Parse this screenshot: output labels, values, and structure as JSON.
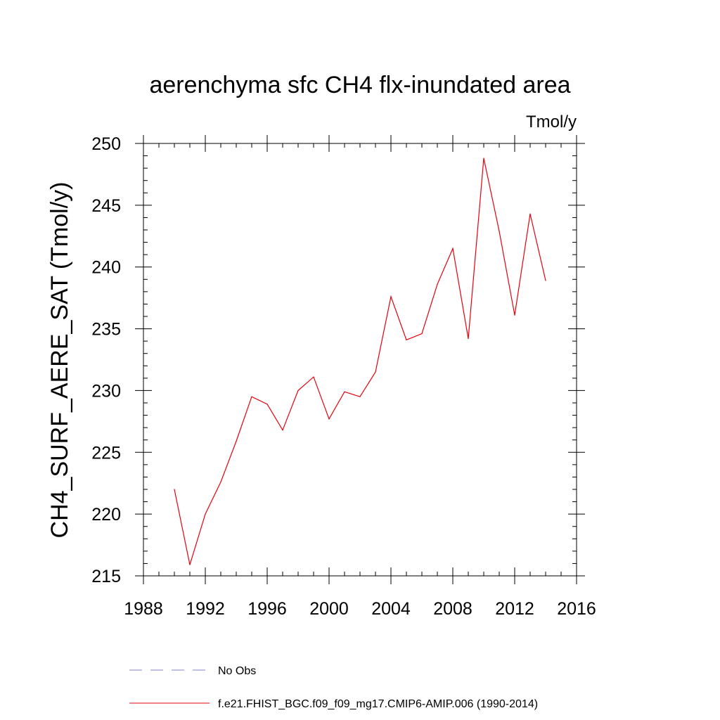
{
  "chart_data": {
    "type": "line",
    "title": "aerenchyma sfc CH4 flx-inundated area",
    "units_label": "Tmol/y",
    "ylabel": "CH4_SURF_AERE_SAT  (Tmol/y)",
    "xlabel": "",
    "xlim": [
      1988,
      2016
    ],
    "ylim": [
      215,
      250
    ],
    "x_ticks": [
      1988,
      1992,
      1996,
      2000,
      2004,
      2008,
      2012,
      2016
    ],
    "y_ticks": [
      215,
      220,
      225,
      230,
      235,
      240,
      245,
      250
    ],
    "x_minor_step": 1,
    "y_minor_step": 1,
    "series": [
      {
        "name": "f.e21.FHIST_BGC.f09_f09_mg17.CMIP6-AMIP.006 (1990-2014)",
        "color": "#e8000b",
        "dash": "solid",
        "x": [
          1990,
          1991,
          1992,
          1993,
          1994,
          1995,
          1996,
          1997,
          1998,
          1999,
          2000,
          2001,
          2002,
          2003,
          2004,
          2005,
          2006,
          2007,
          2008,
          2009,
          2010,
          2011,
          2012,
          2013,
          2014
        ],
        "values": [
          222.0,
          215.9,
          220.0,
          222.6,
          225.9,
          229.5,
          228.9,
          226.8,
          230.0,
          231.1,
          227.7,
          229.9,
          229.5,
          231.5,
          237.6,
          234.1,
          234.6,
          238.6,
          241.5,
          234.2,
          248.8,
          242.9,
          236.1,
          244.3,
          238.9
        ]
      }
    ],
    "legend": [
      {
        "label": "No Obs",
        "color": "#8080c0",
        "dash": "dashed"
      },
      {
        "label": "f.e21.FHIST_BGC.f09_f09_mg17.CMIP6-AMIP.006 (1990-2014)",
        "color": "#e8000b",
        "dash": "solid"
      }
    ],
    "legend_position": "bottom"
  }
}
